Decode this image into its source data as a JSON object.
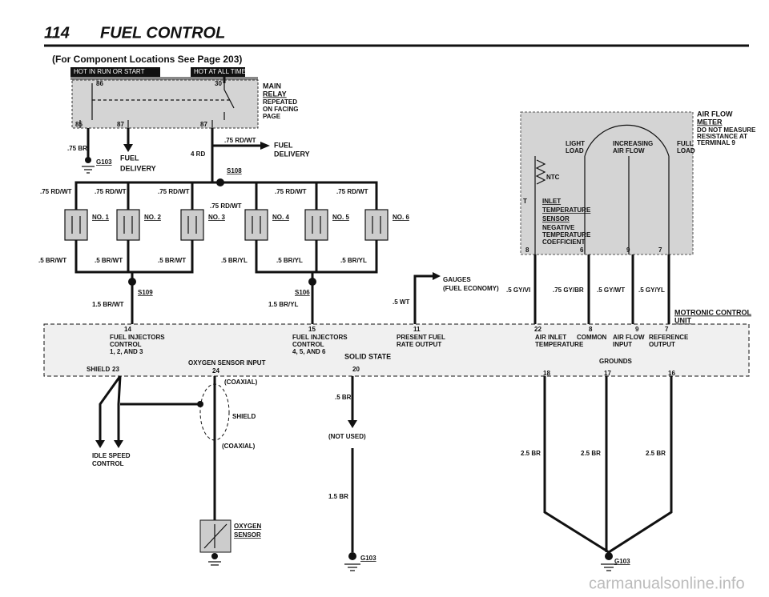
{
  "header": {
    "page": "114",
    "title": "FUEL CONTROL",
    "subtitle": "(For Component Locations See Page 203)"
  },
  "power_buses": [
    "HOT IN RUN OR START",
    "HOT AT ALL TIMES"
  ],
  "main_relay": {
    "name": [
      "MAIN",
      "RELAY"
    ],
    "note": [
      "REPEATED",
      "ON FACING",
      "PAGE"
    ],
    "pins": [
      "86",
      "30",
      "85",
      "87",
      "87"
    ]
  },
  "fuel_delivery": {
    "ground_wire": ".75 BR",
    "ground": "G103",
    "label_left": [
      "FUEL",
      "DELIVERY"
    ],
    "feed": "4 RD",
    "wire": ".75 RD/WT",
    "label_right": [
      "FUEL",
      "DELIVERY"
    ],
    "splice": "S108"
  },
  "injectors": {
    "names": [
      "NO. 1",
      "NO. 2",
      "NO. 3",
      "NO. 4",
      "NO. 5",
      "NO. 6"
    ],
    "feed_wires": [
      ".75 RD/WT",
      ".75 RD/WT",
      ".75 RD/WT",
      ".75 RD/WT",
      ".75 RD/WT",
      ".75 RD/WT"
    ],
    "return_wires": [
      ".5 BR/WT",
      ".5 BR/WT",
      ".5 BR/WT",
      ".5 BR/YL",
      ".5 BR/YL",
      ".5 BR/YL"
    ],
    "splices": [
      "S109",
      "S106"
    ],
    "ground_wires": [
      "1.5 BR/WT",
      "1.5 BR/YL"
    ]
  },
  "gauges": {
    "label": [
      "GAUGES",
      "(FUEL ECONOMY)"
    ],
    "wire": ".5 WT"
  },
  "air_flow_meter": {
    "name": [
      "AIR FLOW",
      "METER"
    ],
    "note": [
      "DO NOT MEASURE",
      "RESISTANCE AT",
      "TERMINAL 9"
    ],
    "scale": [
      "LIGHT",
      "LOAD",
      "INCREASING",
      "AIR FLOW",
      "FULL",
      "LOAD"
    ],
    "ntc": "NTC",
    "t": "T",
    "sensor": [
      "INLET",
      "TEMPERATURE",
      "SENSOR"
    ],
    "sensor_note": [
      "NEGATIVE",
      "TEMPERATURE",
      "COEFFICIENT"
    ],
    "pins": [
      "8",
      "6",
      "9",
      "7"
    ],
    "wires": [
      ".5 GY/VI",
      ".75 GY/BR",
      ".5 GY/WT",
      ".5 GY/YL"
    ]
  },
  "control_unit": {
    "name": [
      "MOTRONIC CONTROL",
      "UNIT"
    ],
    "type": "SOLID STATE",
    "pins": [
      {
        "number": "14",
        "label": [
          "FUEL INJECTORS",
          "CONTROL",
          "1, 2, AND 3"
        ]
      },
      {
        "number": "15",
        "label": [
          "FUEL INJECTORS",
          "CONTROL",
          "4, 5, AND 6"
        ]
      },
      {
        "number": "11",
        "label": [
          "PRESENT FUEL",
          "RATE OUTPUT"
        ]
      },
      {
        "number": "22",
        "label": [
          "AIR INLET",
          "TEMPERATURE"
        ]
      },
      {
        "number": "8",
        "label": [
          "COMMON"
        ]
      },
      {
        "number": "9",
        "label": [
          "AIR FLOW",
          "INPUT"
        ]
      },
      {
        "number": "7",
        "label": [
          "REFERENCE",
          "OUTPUT"
        ]
      }
    ],
    "shield": "SHIELD",
    "shield_pin": "23",
    "oxygen_input": "OXYGEN SENSOR INPUT",
    "oxygen_pin": "24",
    "unused_pin": "20",
    "grounds": "GROUNDS",
    "ground_pins": [
      "18",
      "17",
      "16"
    ]
  },
  "outputs": {
    "coaxial_top": "(COAXIAL)",
    "shield": "SHIELD",
    "coaxial_bottom": "(COAXIAL)",
    "idle_speed": [
      "IDLE SPEED",
      "CONTROL"
    ],
    "unused_wire": ".5 BR",
    "not_used": "(NOT USED)",
    "ground_wire": "1.5 BR",
    "ground": "G103",
    "oxygen_sensor": [
      "OXYGEN",
      "SENSOR"
    ],
    "ground_wires": [
      "2.5 BR",
      "2.5 BR",
      "2.5 BR"
    ],
    "ground2": "G103"
  },
  "watermark": "carmanualsonline.info"
}
